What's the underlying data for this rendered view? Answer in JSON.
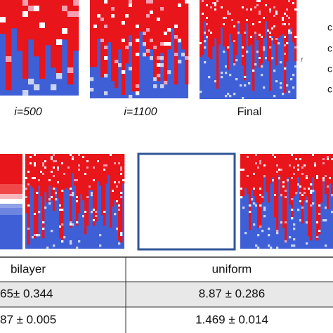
{
  "top_row": {
    "captions": [
      "i=500",
      "i=1100",
      "Final"
    ],
    "side_labels": [
      "c",
      "c",
      "c",
      "c"
    ],
    "side_mark": "f"
  },
  "table": {
    "headers": [
      "bilayer",
      "uniform"
    ],
    "rows": [
      [
        "65± 0.344",
        "8.87 ± 0.286"
      ],
      [
        "87 ± 0.005",
        "1.469 ± 0.014"
      ]
    ]
  }
}
